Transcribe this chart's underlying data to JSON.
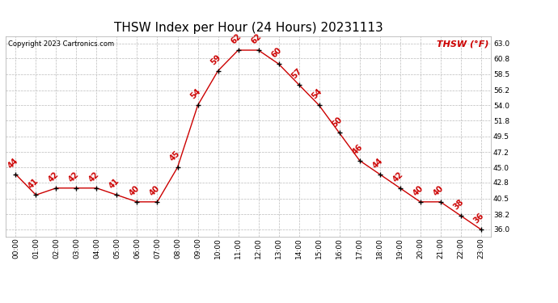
{
  "title": "THSW Index per Hour (24 Hours) 20231113",
  "copyright": "Copyright 2023 Cartronics.com",
  "legend_label": "THSW (°F)",
  "hours": [
    "00:00",
    "01:00",
    "02:00",
    "03:00",
    "04:00",
    "05:00",
    "06:00",
    "07:00",
    "08:00",
    "09:00",
    "10:00",
    "11:00",
    "12:00",
    "13:00",
    "14:00",
    "15:00",
    "16:00",
    "17:00",
    "18:00",
    "19:00",
    "20:00",
    "21:00",
    "22:00",
    "23:00"
  ],
  "values": [
    44,
    41,
    42,
    42,
    42,
    41,
    40,
    40,
    45,
    54,
    59,
    62,
    62,
    60,
    57,
    54,
    50,
    46,
    44,
    42,
    40,
    40,
    38,
    36
  ],
  "line_color": "#cc0000",
  "marker_color": "#000000",
  "bg_color": "#ffffff",
  "grid_color": "#bbbbbb",
  "ylim_min": 35.0,
  "ylim_max": 64.0,
  "yticks": [
    36.0,
    38.2,
    40.5,
    42.8,
    45.0,
    47.2,
    49.5,
    51.8,
    54.0,
    56.2,
    58.5,
    60.8,
    63.0
  ],
  "title_fontsize": 11,
  "tick_fontsize": 6.5,
  "copyright_fontsize": 6,
  "annotation_fontsize": 7,
  "legend_fontsize": 8
}
